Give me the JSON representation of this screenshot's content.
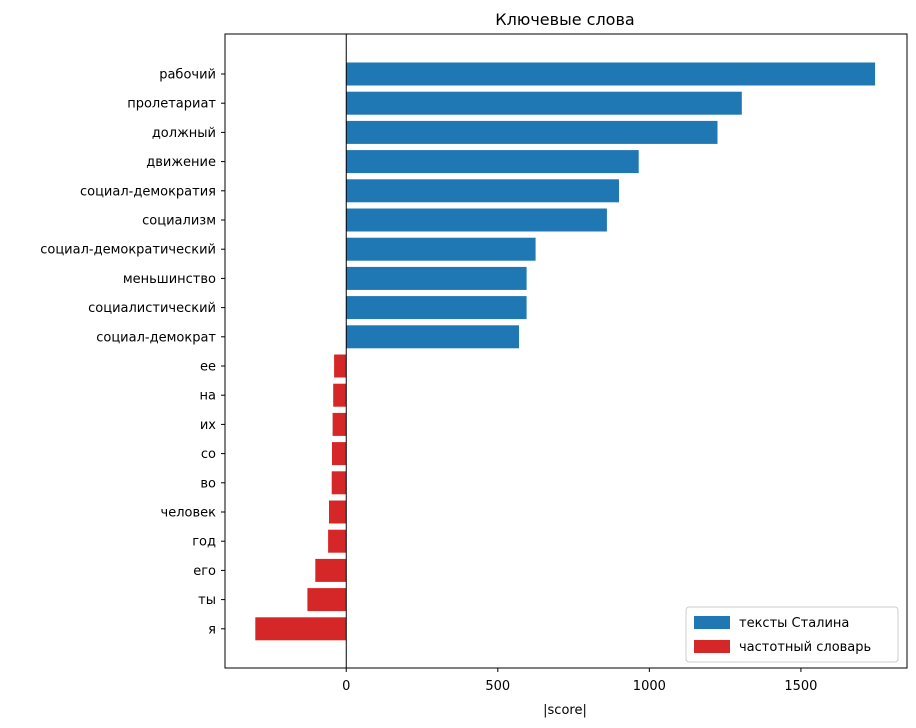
{
  "chart_data": {
    "type": "bar",
    "orientation": "horizontal",
    "title": "Ключевые слова",
    "xlabel": "|score|",
    "ylabel": "",
    "xlim": [
      -400,
      1850
    ],
    "xticks": [
      0,
      500,
      1000,
      1500
    ],
    "grid": false,
    "legend_position": "bottom-right",
    "categories": [
      "рабочий",
      "пролетариат",
      "должный",
      "движение",
      "социал-демократия",
      "социализм",
      "социал-демократический",
      "меньшинство",
      "социалистический",
      "социал-демократ",
      "ее",
      "на",
      "их",
      "со",
      "во",
      "человек",
      "год",
      "его",
      "ты",
      "я"
    ],
    "series": [
      {
        "name": "тексты Сталина",
        "color": "#1f77b4",
        "values": [
          1745,
          1305,
          1225,
          965,
          900,
          860,
          625,
          595,
          595,
          570,
          null,
          null,
          null,
          null,
          null,
          null,
          null,
          null,
          null,
          null
        ]
      },
      {
        "name": "частотный словарь",
        "color": "#d62728",
        "values": [
          null,
          null,
          null,
          null,
          null,
          null,
          null,
          null,
          null,
          null,
          -40,
          -43,
          -45,
          -47,
          -48,
          -57,
          -60,
          -102,
          -128,
          -300
        ]
      }
    ]
  }
}
